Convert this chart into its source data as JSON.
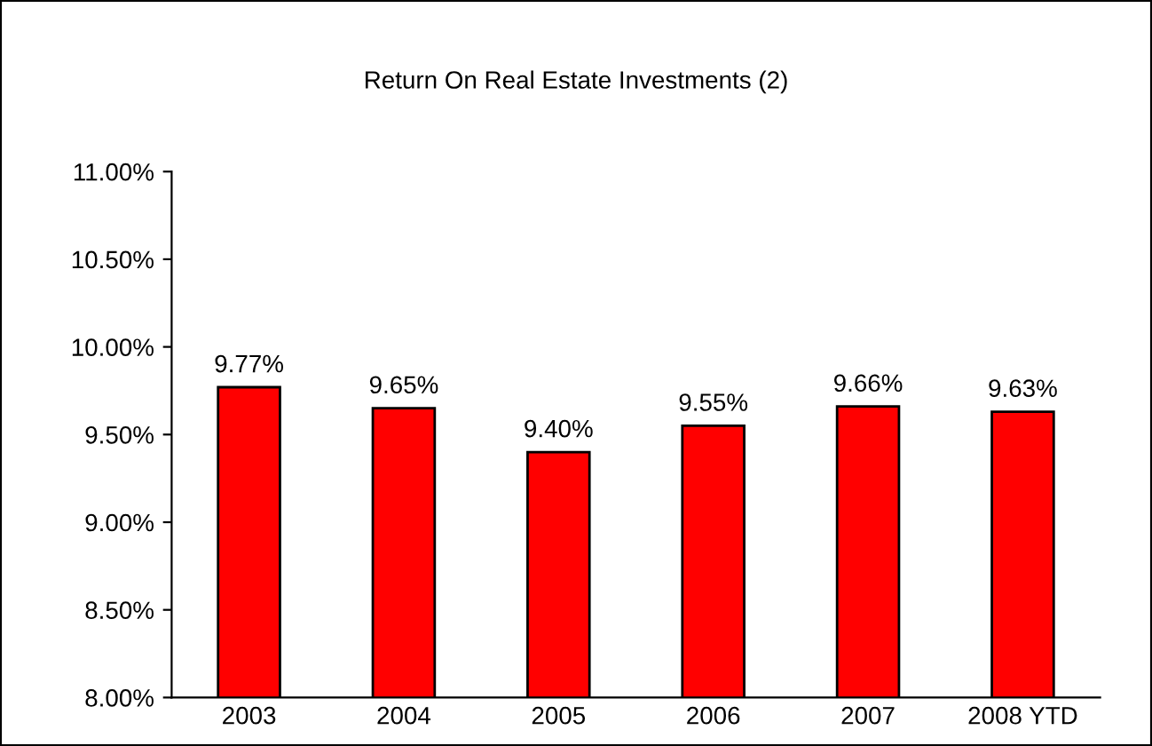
{
  "chart_data": {
    "type": "bar",
    "title": "Return On Real Estate Investments (2)",
    "categories": [
      "2003",
      "2004",
      "2005",
      "2006",
      "2007",
      "2008 YTD"
    ],
    "series": [
      {
        "color": "#ff0000",
        "values": [
          9.77,
          9.65,
          9.4,
          9.55,
          9.66,
          9.63
        ],
        "value_labels": [
          "9.77%",
          "9.65%",
          "9.40%",
          "9.55%",
          "9.66%",
          "9.63%"
        ]
      }
    ],
    "ylim": [
      8,
      11
    ],
    "yticks": [
      {
        "value": 8,
        "label": "8.00%"
      },
      {
        "value": 8.5,
        "label": "8.50%"
      },
      {
        "value": 9,
        "label": "9.00%"
      },
      {
        "value": 9.5,
        "label": "9.50%"
      },
      {
        "value": 10,
        "label": "10.00%"
      },
      {
        "value": 10.5,
        "label": "10.50%"
      },
      {
        "value": 11,
        "label": "11.00%"
      }
    ],
    "grid": false,
    "legend": false
  }
}
